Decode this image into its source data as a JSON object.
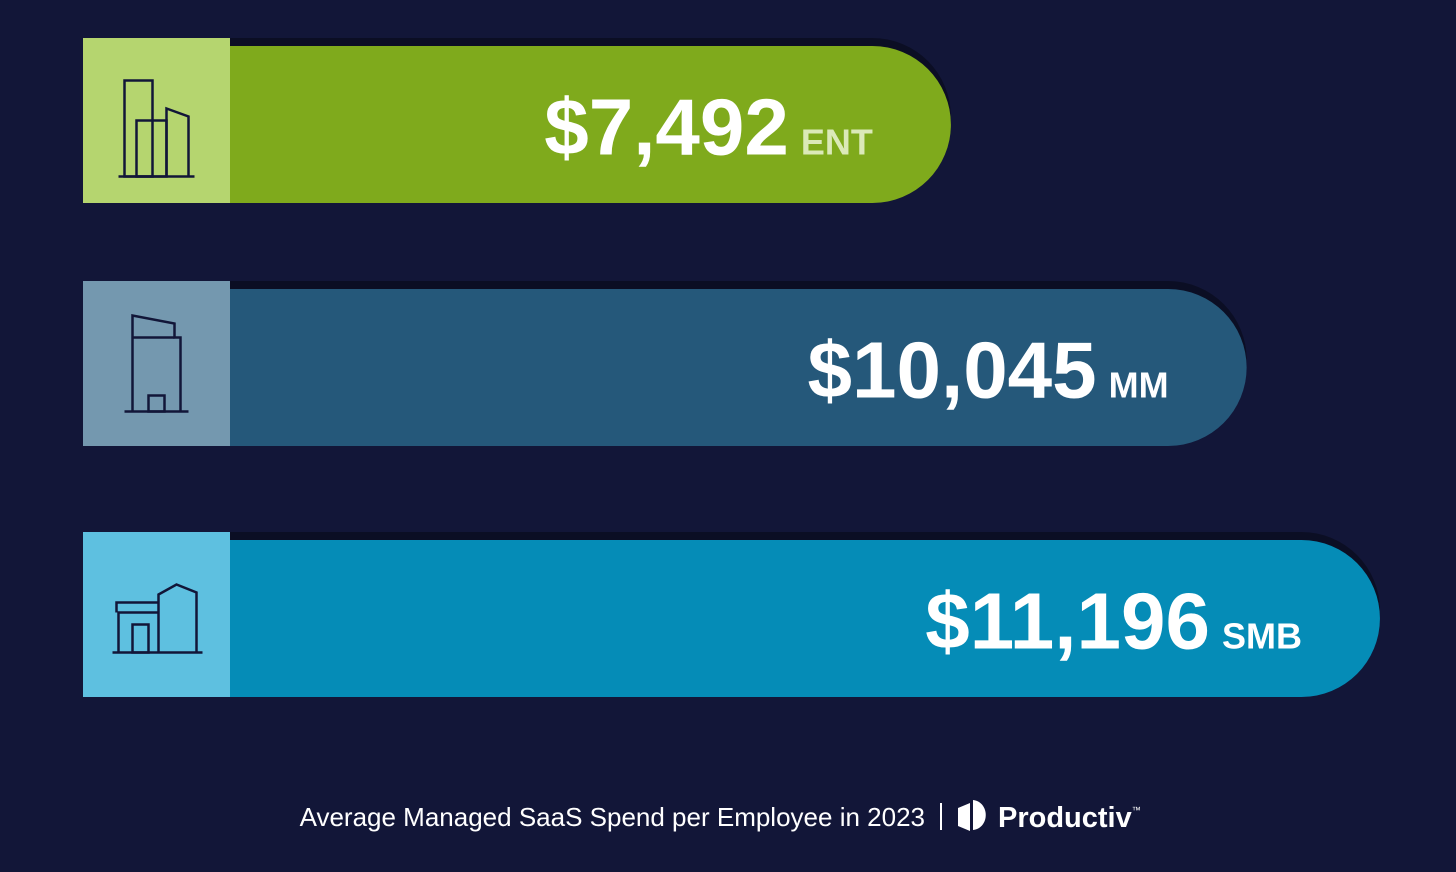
{
  "chart_data": {
    "type": "bar",
    "orientation": "horizontal",
    "title": "Average Managed SaaS Spend per Employee in 2023",
    "brand": "Productiv",
    "trademark": "™",
    "categories": [
      "ENT",
      "MM",
      "SMB"
    ],
    "values": [
      7492,
      10045,
      11196
    ],
    "value_labels": [
      "$7,492",
      "$10,045",
      "$11,196"
    ],
    "colors": [
      "#7faa1c",
      "#25587a",
      "#058cb7"
    ],
    "icon_colors": [
      "#b5d56f",
      "#7498af",
      "#5ec0e0"
    ],
    "category_colors": [
      "#dbe9b8",
      "#ffffff",
      "#ffffff"
    ]
  }
}
